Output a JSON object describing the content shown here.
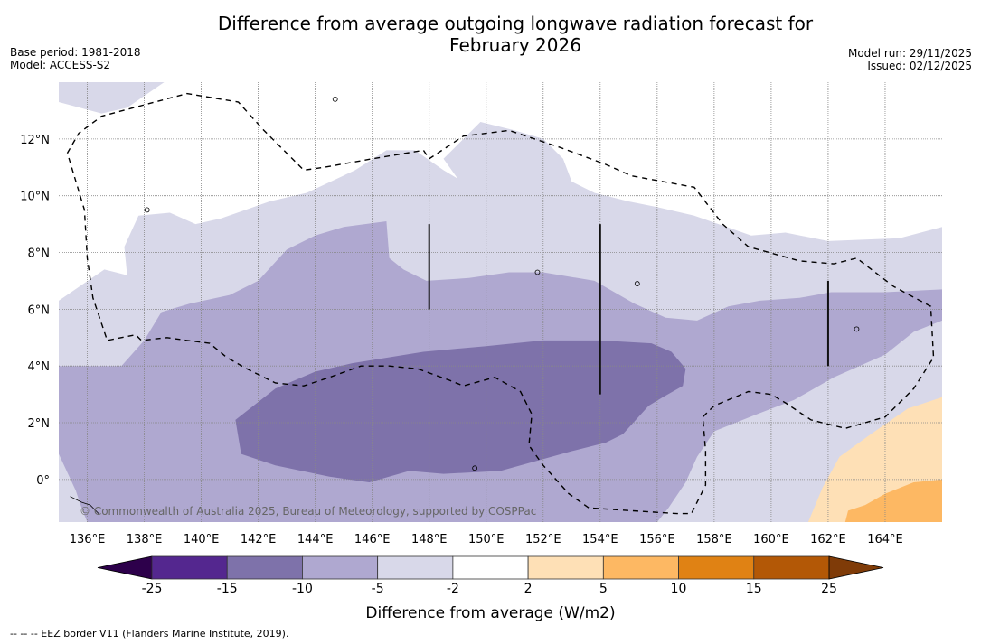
{
  "title": {
    "line1": "Difference from average outgoing longwave radiation forecast for",
    "line2": "February 2026"
  },
  "meta_left": {
    "base_period": "Base period: 1981-2018",
    "model": "Model: ACCESS-S2"
  },
  "meta_right": {
    "model_run": "Model run: 29/11/2025",
    "issued": "Issued: 02/12/2025"
  },
  "map": {
    "lon_range": [
      135,
      166
    ],
    "lat_range": [
      -1.5,
      14
    ],
    "lon_ticks": [
      {
        "value": 136,
        "label": "136°E"
      },
      {
        "value": 138,
        "label": "138°E"
      },
      {
        "value": 140,
        "label": "140°E"
      },
      {
        "value": 142,
        "label": "142°E"
      },
      {
        "value": 144,
        "label": "144°E"
      },
      {
        "value": 146,
        "label": "146°E"
      },
      {
        "value": 148,
        "label": "148°E"
      },
      {
        "value": 150,
        "label": "150°E"
      },
      {
        "value": 152,
        "label": "152°E"
      },
      {
        "value": 154,
        "label": "154°E"
      },
      {
        "value": 156,
        "label": "156°E"
      },
      {
        "value": 158,
        "label": "158°E"
      },
      {
        "value": 160,
        "label": "160°E"
      },
      {
        "value": 162,
        "label": "162°E"
      },
      {
        "value": 164,
        "label": "164°E"
      }
    ],
    "lat_ticks": [
      {
        "value": 12,
        "label": "12°N"
      },
      {
        "value": 10,
        "label": "10°N"
      },
      {
        "value": 8,
        "label": "8°N"
      },
      {
        "value": 6,
        "label": "6°N"
      },
      {
        "value": 4,
        "label": "4°N"
      },
      {
        "value": 2,
        "label": "2°N"
      },
      {
        "value": 0,
        "label": "0°"
      }
    ],
    "copyright": "© Commonwealth of Australia 2025, Bureau of Meteorology, supported by COSPPac",
    "boundary_lines": [
      {
        "lon": 148,
        "lat_from": 6,
        "lat_to": 9
      },
      {
        "lon": 154,
        "lat_from": 3,
        "lat_to": 9
      },
      {
        "lon": 162,
        "lat_from": 4,
        "lat_to": 7
      }
    ]
  },
  "colorbar": {
    "title": "Difference from average (W/m2)",
    "levels": [
      "-25",
      "-15",
      "-10",
      "-5",
      "-2",
      "2",
      "5",
      "10",
      "15",
      "25"
    ],
    "colors": [
      "#54278f",
      "#7e72aa",
      "#afa8d0",
      "#d8d8e9",
      "#ffffff",
      "#fee0b6",
      "#fdb863",
      "#e08214",
      "#b35806"
    ],
    "under_color": "#2d004b",
    "over_color": "#7f3b08"
  },
  "footnote": "--  --  -- EEZ border V11 (Flanders Marine Institute, 2019)."
}
